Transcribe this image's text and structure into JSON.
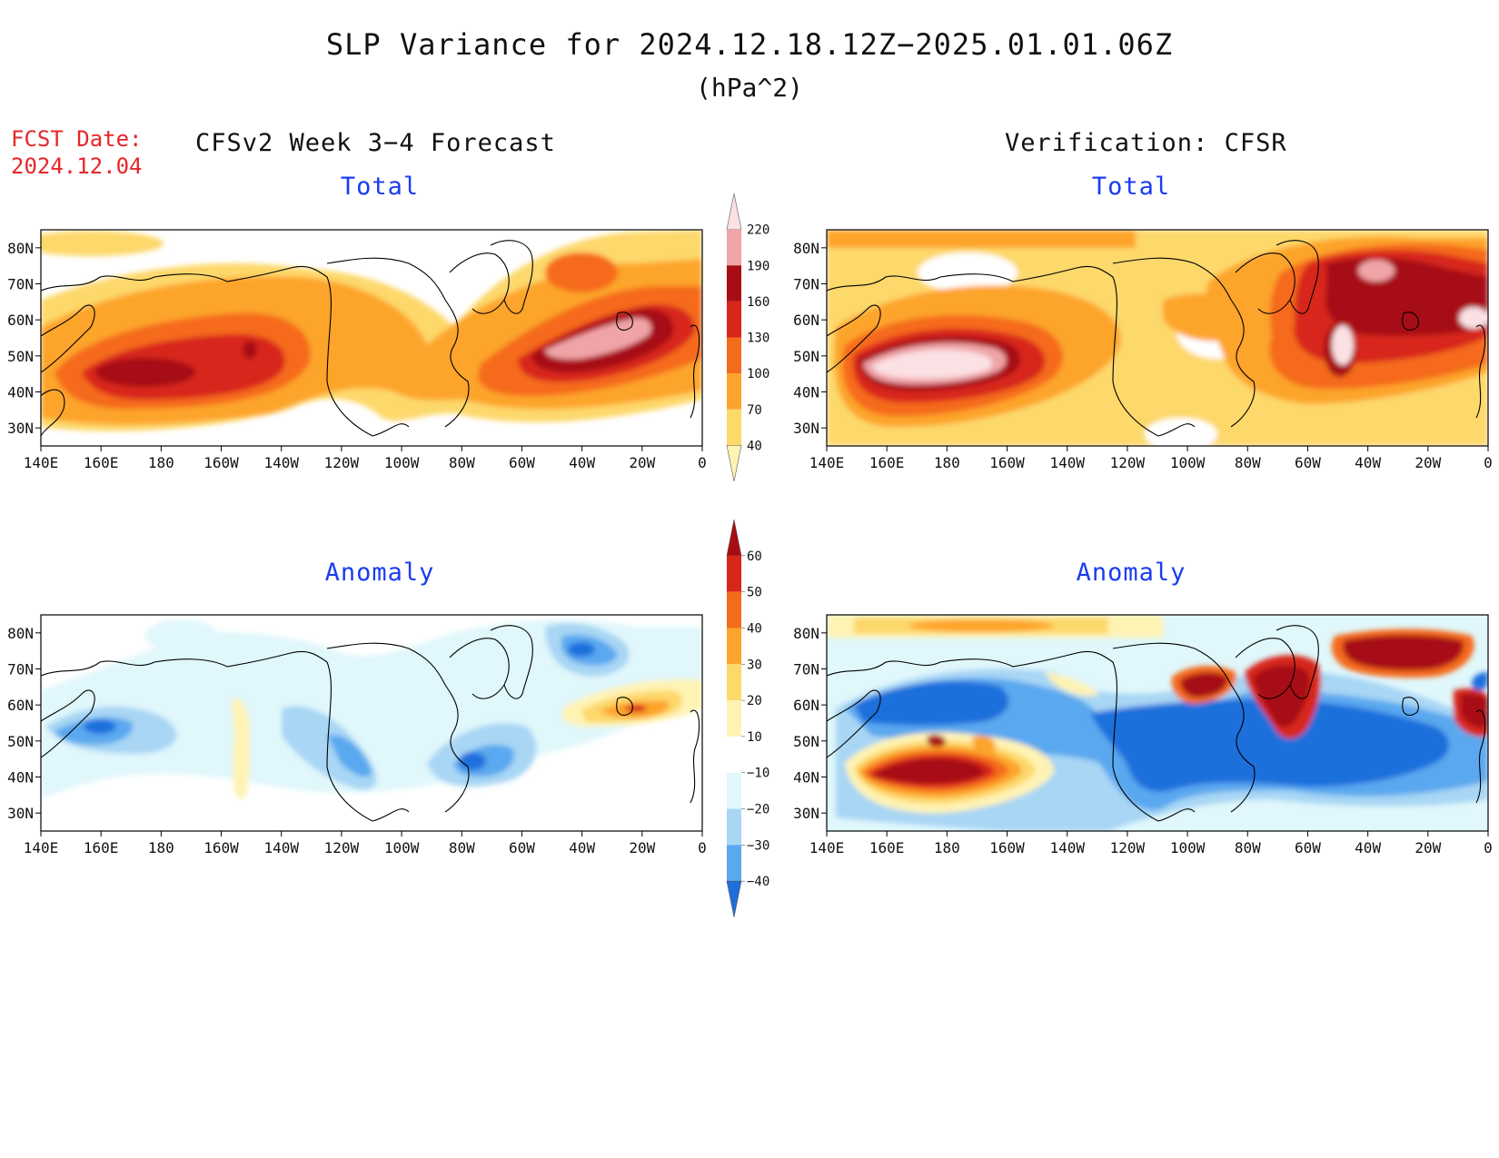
{
  "title": "SLP Variance for 2024.12.18.12Z−2025.01.01.06Z",
  "units": "(hPa^2)",
  "fcst_date_label": "FCST Date:",
  "fcst_date_value": "2024.12.04",
  "forecast_header": "CFSv2 Week 3−4 Forecast",
  "verification_header": "Verification: CFSR",
  "panels": [
    {
      "id": "fcst-total",
      "title": "Total",
      "field": "total"
    },
    {
      "id": "verif-total",
      "title": "Total",
      "field": "total"
    },
    {
      "id": "fcst-anom",
      "title": "Anomaly",
      "field": "anomaly"
    },
    {
      "id": "verif-anom",
      "title": "Anomaly",
      "field": "anomaly"
    }
  ],
  "lat_ticks": [
    "80N",
    "70N",
    "60N",
    "50N",
    "40N",
    "30N"
  ],
  "lon_ticks": [
    "140E",
    "160E",
    "180",
    "160W",
    "140W",
    "120W",
    "100W",
    "80W",
    "60W",
    "40W",
    "20W",
    "0"
  ],
  "total_colorbar": {
    "levels": [
      "40",
      "70",
      "100",
      "130",
      "160",
      "190",
      "220"
    ],
    "colors": [
      "#fff3b4",
      "#fdd86b",
      "#fda42c",
      "#f56b1c",
      "#d8261a",
      "#a70d12",
      "#f0a4a8",
      "#fbe1e4"
    ]
  },
  "anomaly_colorbar": {
    "levels": [
      "60",
      "50",
      "40",
      "30",
      "20",
      "10",
      "−10",
      "−20",
      "−30",
      "−40"
    ],
    "colors": [
      "#a70d12",
      "#d8261a",
      "#f56b1c",
      "#fda42c",
      "#fdd86b",
      "#fff3b4",
      "#ffffff",
      "#e0f7fb",
      "#a8d6f4",
      "#5aa8ef",
      "#1e6fdc"
    ]
  }
}
